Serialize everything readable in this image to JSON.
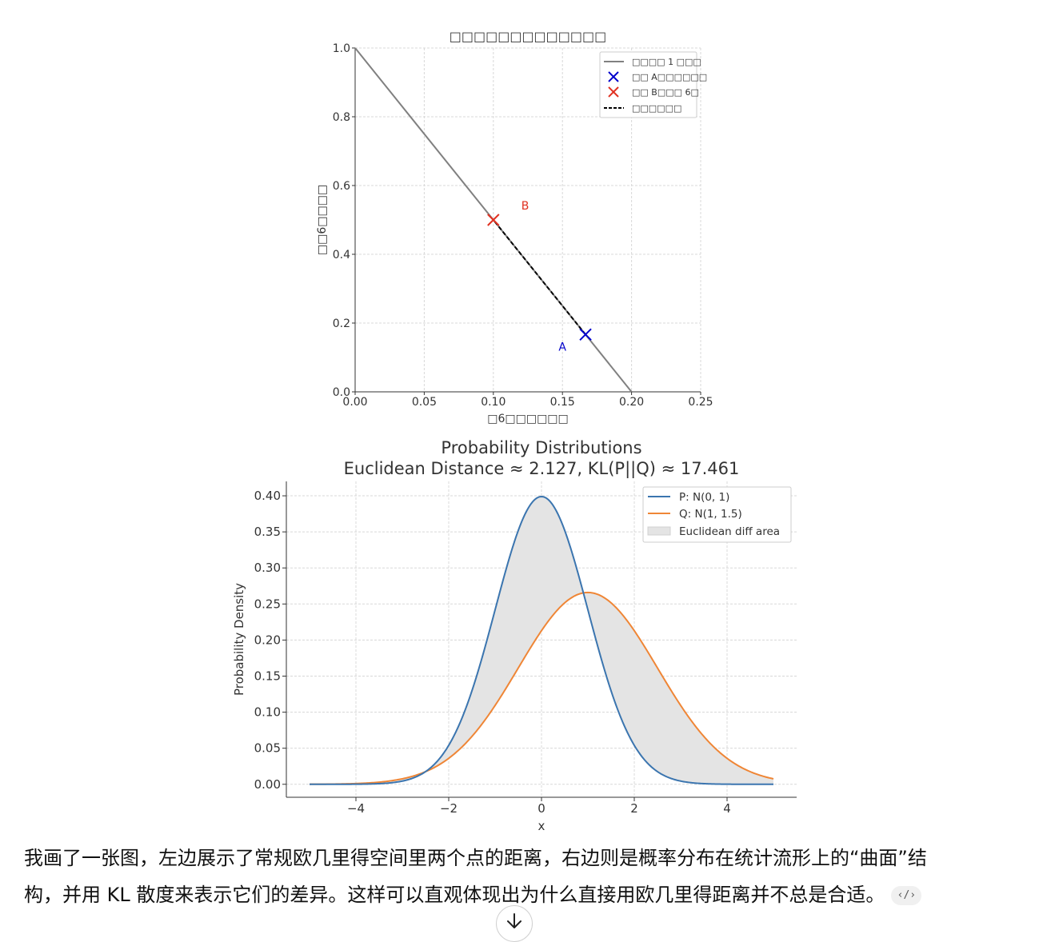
{
  "charts": [
    {
      "type": "line",
      "title": "□□□□□□□□□□□□□",
      "xlabel": "□6□□□□□□",
      "ylabel": "□□6□□□□",
      "xlim": [
        0.0,
        0.25
      ],
      "ylim": [
        0.0,
        1.0
      ],
      "xticks": [
        "0.00",
        "0.05",
        "0.10",
        "0.15",
        "0.20",
        "0.25"
      ],
      "yticks": [
        "0.0",
        "0.2",
        "0.4",
        "0.6",
        "0.8",
        "1.0"
      ],
      "grid": true,
      "legend_position": "top-right",
      "colors": {
        "line": "#808080",
        "point_a": "#0000cc",
        "point_b": "#e03020",
        "segment": "#000000"
      },
      "legend": [
        "□□□□ 1 □□□",
        "□□ A□□□□□□",
        "□□ B□□□ 6□",
        "□□□□□□"
      ],
      "series": [
        {
          "kind": "line",
          "x": [
            0.0,
            0.2
          ],
          "y": [
            1.0,
            0.0
          ]
        },
        {
          "kind": "point",
          "x": [
            0.1667
          ],
          "y": [
            0.1667
          ]
        },
        {
          "kind": "point",
          "x": [
            0.1
          ],
          "y": [
            0.5
          ]
        },
        {
          "kind": "dashed",
          "x": [
            0.1667,
            0.1
          ],
          "y": [
            0.1667,
            0.5
          ]
        }
      ],
      "annotations": [
        {
          "text": "A",
          "x": 0.15,
          "y": 0.12,
          "color": "#0000cc"
        },
        {
          "text": "B",
          "x": 0.123,
          "y": 0.53,
          "color": "#e03020"
        }
      ]
    },
    {
      "type": "area",
      "title": "Probability Distributions",
      "subtitle": "Euclidean Distance ≈ 2.127, KL(P||Q) ≈ 17.461",
      "xlabel": "x",
      "ylabel": "Probability Density",
      "xlim": [
        -5.5,
        5.5
      ],
      "ylim": [
        -0.018,
        0.42
      ],
      "xticks": [
        "−4",
        "−2",
        "0",
        "2",
        "4"
      ],
      "xtick_values": [
        -4,
        -2,
        0,
        2,
        4
      ],
      "yticks": [
        "0.00",
        "0.05",
        "0.10",
        "0.15",
        "0.20",
        "0.25",
        "0.30",
        "0.35",
        "0.40"
      ],
      "grid": true,
      "legend_position": "top-right",
      "colors": {
        "p": "#3b75af",
        "q": "#ef8636",
        "fill": "#e4e4e4"
      },
      "legend": [
        "P: N(0, 1)",
        "Q: N(1, 1.5)",
        "Euclidean diff area"
      ],
      "series": [
        {
          "name": "P: N(0, 1)",
          "mean": 0,
          "sd": 1,
          "x_range": [
            -5,
            5
          ]
        },
        {
          "name": "Q: N(1, 1.5)",
          "mean": 1,
          "sd": 1.5,
          "x_range": [
            -5,
            5
          ]
        }
      ]
    }
  ],
  "message": {
    "line1": "我画了一张图，左边展示了常规欧几里得空间里两个点的距离，右边则是概率分布在统计流形上的“曲面”结",
    "line2": "构，并用 KL 散度来表示它们的差异。这样可以直观体现出为什么直接用欧几里得距离并不总是合适。",
    "code_chip": "‹/›"
  },
  "icons": {
    "scroll_down": "arrow-down-icon"
  }
}
